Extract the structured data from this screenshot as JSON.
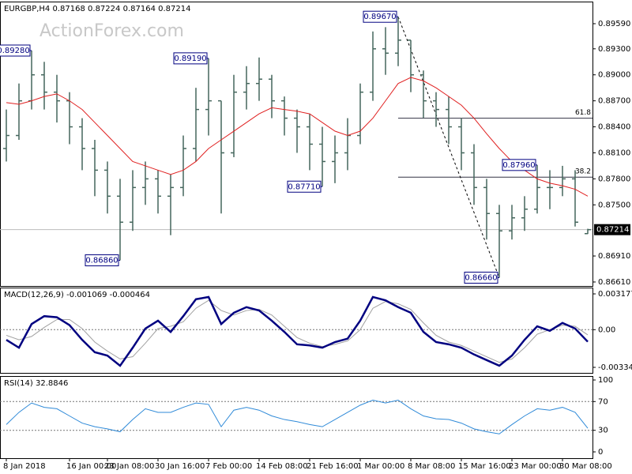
{
  "watermark": "ActionForex.com",
  "chart_data": [
    {
      "type": "ohlc",
      "title": "EURGBP,H4",
      "color": "#44665c",
      "categories": [
        "8 Jan 2018",
        null,
        null,
        null,
        null,
        "16 Jan 00:00",
        null,
        null,
        "23 Jan 08:00",
        null,
        null,
        null,
        "30 Jan 16:00",
        null,
        null,
        null,
        "7 Feb 00:00",
        null,
        null,
        null,
        "14 Feb 08:00",
        null,
        null,
        null,
        "21 Feb 16:00",
        null,
        null,
        null,
        "1 Mar 00:00",
        null,
        null,
        null,
        "8 Mar 08:00",
        null,
        null,
        null,
        "15 Mar 16:00",
        null,
        null,
        null,
        "23 Mar 00:00",
        null,
        null,
        null,
        "30 Mar 08:00",
        null,
        null
      ],
      "open": [
        0.8815,
        0.883,
        0.887,
        0.89,
        0.888,
        0.887,
        0.884,
        0.8815,
        0.879,
        0.876,
        0.873,
        0.877,
        0.878,
        0.876,
        0.877,
        0.8815,
        0.886,
        0.887,
        0.881,
        0.888,
        0.889,
        0.8895,
        0.887,
        0.885,
        0.884,
        0.882,
        0.88,
        0.881,
        0.883,
        0.888,
        0.893,
        0.8925,
        0.894,
        0.89,
        0.887,
        0.886,
        0.884,
        0.881,
        0.877,
        0.874,
        0.872,
        0.8735,
        0.8745,
        0.877,
        0.877,
        0.878,
        0.87168
      ],
      "high": [
        0.886,
        0.889,
        0.8928,
        0.8915,
        0.89,
        0.888,
        0.885,
        0.8825,
        0.88,
        0.878,
        0.879,
        0.88,
        0.879,
        0.8785,
        0.883,
        0.8885,
        0.8919,
        0.887,
        0.89,
        0.891,
        0.892,
        0.89,
        0.8875,
        0.886,
        0.8855,
        0.884,
        0.883,
        0.885,
        0.889,
        0.895,
        0.8955,
        0.8967,
        0.894,
        0.8905,
        0.888,
        0.8875,
        0.885,
        0.882,
        0.878,
        0.875,
        0.875,
        0.876,
        0.8796,
        0.879,
        0.8795,
        0.879,
        0.87224
      ],
      "low": [
        0.88,
        0.8825,
        0.886,
        0.886,
        0.8845,
        0.882,
        0.879,
        0.876,
        0.874,
        0.8686,
        0.872,
        0.875,
        0.874,
        0.8715,
        0.876,
        0.88,
        0.883,
        0.874,
        0.8805,
        0.886,
        0.887,
        0.885,
        0.883,
        0.881,
        0.879,
        0.8771,
        0.8775,
        0.879,
        0.882,
        0.887,
        0.89,
        0.891,
        0.888,
        0.885,
        0.884,
        0.882,
        0.879,
        0.875,
        0.871,
        0.8666,
        0.871,
        0.872,
        0.874,
        0.8745,
        0.876,
        0.8725,
        0.87164
      ],
      "close": [
        0.883,
        0.887,
        0.89,
        0.888,
        0.887,
        0.884,
        0.8815,
        0.879,
        0.876,
        0.873,
        0.877,
        0.878,
        0.876,
        0.877,
        0.8815,
        0.886,
        0.887,
        0.881,
        0.888,
        0.889,
        0.8895,
        0.887,
        0.885,
        0.884,
        0.882,
        0.88,
        0.881,
        0.883,
        0.888,
        0.893,
        0.8925,
        0.894,
        0.89,
        0.887,
        0.886,
        0.884,
        0.881,
        0.877,
        0.874,
        0.872,
        0.8735,
        0.8745,
        0.877,
        0.877,
        0.878,
        0.873,
        0.87214
      ],
      "overlay": {
        "color": "#e02020",
        "values": [
          0.8868,
          0.8866,
          0.887,
          0.8875,
          0.8878,
          0.887,
          0.886,
          0.8845,
          0.883,
          0.8815,
          0.88,
          0.8795,
          0.879,
          0.8785,
          0.879,
          0.88,
          0.8815,
          0.8825,
          0.8835,
          0.8845,
          0.8855,
          0.8862,
          0.886,
          0.8858,
          0.8855,
          0.8845,
          0.8835,
          0.883,
          0.8835,
          0.885,
          0.887,
          0.889,
          0.8897,
          0.8893,
          0.8885,
          0.8875,
          0.8865,
          0.885,
          0.8832,
          0.8815,
          0.88,
          0.879,
          0.878,
          0.8775,
          0.8772,
          0.8768,
          0.876
        ]
      },
      "annotations": [
        {
          "value": 0.8928,
          "label": "0.89280"
        },
        {
          "value": 0.8919,
          "label": "0.89190"
        },
        {
          "value": 0.8967,
          "label": "0.89670"
        },
        {
          "value": 0.8771,
          "label": "0.87710"
        },
        {
          "value": 0.8686,
          "label": "0.86860"
        },
        {
          "value": 0.8666,
          "label": "0.86660"
        },
        {
          "value": 0.8796,
          "label": "0.87960"
        }
      ],
      "fib_levels": [
        {
          "value": 0.885,
          "label": "61.8"
        },
        {
          "value": 0.8782,
          "label": "38.2"
        }
      ],
      "ylim": [
        0.86564,
        0.89845
      ],
      "yticks": [
        {
          "value": 0.8959,
          "label": "0.89590"
        },
        {
          "value": 0.893,
          "label": "0.89300"
        },
        {
          "value": 0.89,
          "label": "0.89000"
        },
        {
          "value": 0.887,
          "label": "0.88700"
        },
        {
          "value": 0.884,
          "label": "0.88400"
        },
        {
          "value": 0.881,
          "label": "0.88100"
        },
        {
          "value": 0.878,
          "label": "0.87800"
        },
        {
          "value": 0.875,
          "label": "0.87500"
        },
        {
          "value": 0.8691,
          "label": "0.86910"
        },
        {
          "value": 0.8661,
          "label": "0.86610"
        }
      ]
    },
    {
      "type": "line",
      "title": "MACD(12,26,9)",
      "series": [
        {
          "color": "#000080",
          "values": [
            -0.0009,
            -0.0016,
            0.0005,
            0.0012,
            0.0011,
            0.0004,
            -0.0009,
            -0.002,
            -0.0023,
            -0.0032,
            -0.0016,
            0.0001,
            0.0008,
            -0.0002,
            0.0012,
            0.0027,
            0.0029,
            0.0005,
            0.0015,
            0.002,
            0.0017,
            0.0008,
            -0.0002,
            -0.0013,
            -0.0014,
            -0.0016,
            -0.0011,
            -0.0008,
            0.0008,
            0.0029,
            0.0026,
            0.002,
            0.0015,
            -0.0002,
            -0.0011,
            -0.0013,
            -0.0016,
            -0.0022,
            -0.0027,
            -0.0032,
            -0.0023,
            -0.0009,
            0.0003,
            -0.0001,
            0.0006,
            0.0001,
            -0.001069
          ]
        },
        {
          "color": "#a0a0a0",
          "values": [
            -0.0005,
            -0.0009,
            -0.0006,
            0.0002,
            0.0009,
            0.0009,
            0.0001,
            -0.0011,
            -0.0019,
            -0.0026,
            -0.0024,
            -0.0012,
            0.0001,
            0.0003,
            0.0007,
            0.0019,
            0.0026,
            0.0017,
            0.0013,
            0.0017,
            0.0018,
            0.0013,
            0.0003,
            -0.0007,
            -0.0012,
            -0.0015,
            -0.0013,
            -0.001,
            0.0,
            0.0019,
            0.0025,
            0.0023,
            0.0018,
            0.0006,
            -0.0005,
            -0.0011,
            -0.0014,
            -0.0019,
            -0.0024,
            -0.0029,
            -0.0026,
            -0.0016,
            -0.0004,
            0.0,
            0.0004,
            0.0003,
            -0.000464
          ]
        }
      ],
      "ylim": [
        -0.003835,
        0.003738
      ],
      "yticks": [
        0.003177,
        {
          "value": 0,
          "label": "0.00"
        },
        -0.003344
      ],
      "levels": [
        0
      ]
    },
    {
      "type": "line",
      "title": "RSI(14)",
      "series": [
        {
          "color": "#2f8ad8",
          "values": [
            38,
            55,
            68,
            62,
            60,
            50,
            40,
            35,
            32,
            28,
            45,
            60,
            55,
            55,
            62,
            68,
            66,
            35,
            58,
            62,
            58,
            50,
            45,
            42,
            38,
            35,
            45,
            55,
            65,
            72,
            68,
            72,
            60,
            50,
            46,
            45,
            40,
            32,
            28,
            25,
            38,
            50,
            60,
            58,
            62,
            55,
            32.8846
          ]
        }
      ],
      "ylim": [
        -8.8,
        105.5
      ],
      "yticks": [
        100,
        70,
        30,
        0
      ],
      "levels": [
        70,
        30
      ]
    }
  ]
}
